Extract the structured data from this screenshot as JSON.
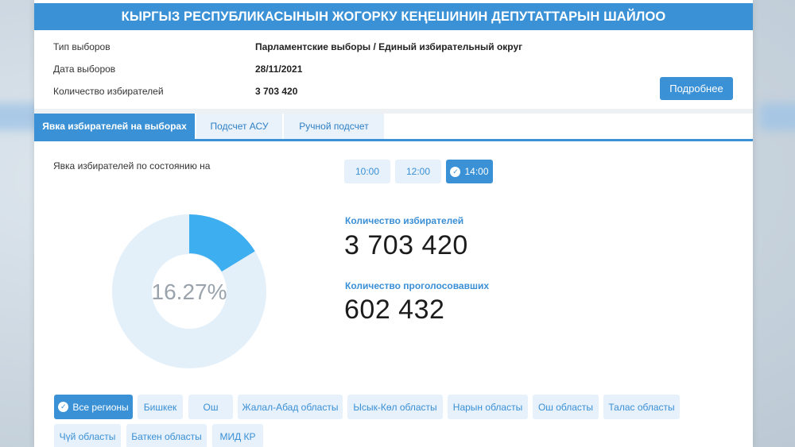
{
  "banner": {
    "title": "КЫРГЫЗ РЕСПУБЛИКАСЫНЫН ЖОГОРКУ КЕҢЕШИНИН ДЕПУТАТТАРЫН ШАЙЛОО"
  },
  "info": {
    "rows": [
      {
        "label": "Тип выборов",
        "value": "Парламентские выборы / Единый избирательный округ"
      },
      {
        "label": "Дата выборов",
        "value": "28/11/2021"
      },
      {
        "label": "Количество избирателей",
        "value": "3 703 420"
      }
    ],
    "more_button": "Подробнее"
  },
  "tabs": [
    {
      "label": "Явка избирателей на выборах",
      "active": true
    },
    {
      "label": "Подсчет АСУ",
      "active": false
    },
    {
      "label": "Ручной подсчет",
      "active": false
    }
  ],
  "turnout": {
    "label": "Явка избирателей по состоянию на",
    "times": [
      {
        "label": "10:00",
        "active": false
      },
      {
        "label": "12:00",
        "active": false
      },
      {
        "label": "14:00",
        "active": true
      }
    ],
    "percent_text": "16.27%",
    "percent_value": 16.27,
    "voters_label": "Количество избирателей",
    "voters_value": "3 703 420",
    "voted_label": "Количество проголосовавших",
    "voted_value": "602 432"
  },
  "regions": [
    {
      "label": "Все регионы",
      "active": true
    },
    {
      "label": "Бишкек",
      "active": false
    },
    {
      "label": "Ош",
      "active": false
    },
    {
      "label": "Жалал-Абад областы",
      "active": false
    },
    {
      "label": "Ысык-Көл областы",
      "active": false
    },
    {
      "label": "Нарын областы",
      "active": false
    },
    {
      "label": "Ош областы",
      "active": false
    },
    {
      "label": "Талас областы",
      "active": false
    },
    {
      "label": "Чүй областы",
      "active": false
    },
    {
      "label": "Баткен областы",
      "active": false
    },
    {
      "label": "МИД КР",
      "active": false
    }
  ],
  "colors": {
    "accent": "#3a91d6",
    "donut_fill": "#3daef0",
    "donut_track": "#e3f0fa"
  },
  "icons": {
    "check": "check-circle-icon"
  }
}
